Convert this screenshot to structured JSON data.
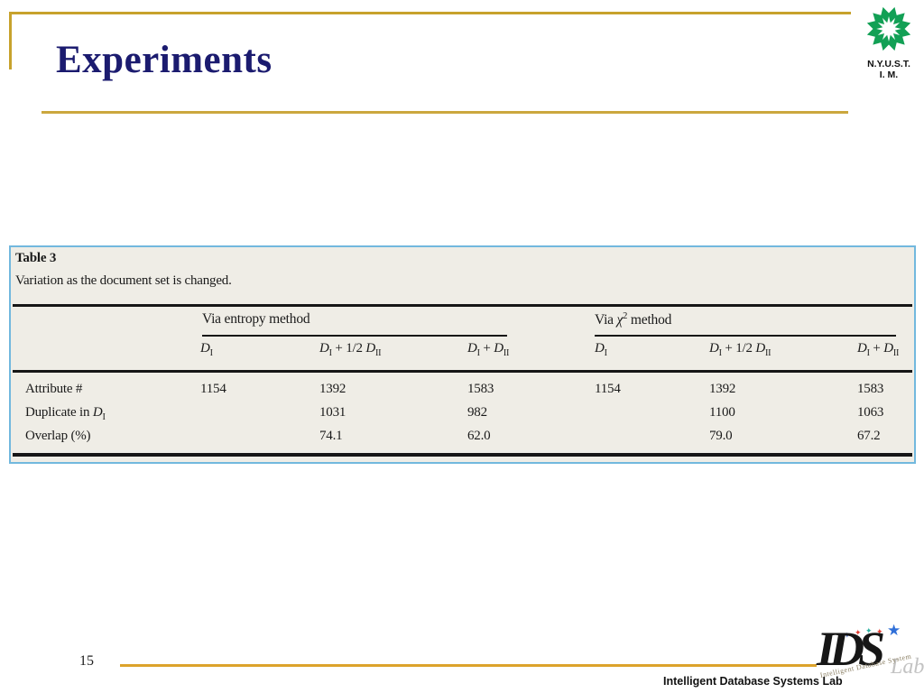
{
  "slide": {
    "title": "Experiments",
    "page_number": "15",
    "footer": "Intelligent Database Systems Lab"
  },
  "logos": {
    "nyust_line1": "N.Y.U.S.T.",
    "nyust_line2": "I. M.",
    "ids_letters": "IDS",
    "ids_watermark": "Intelligent Database System",
    "ids_lab": "Lab"
  },
  "table": {
    "caption_title": "Table 3",
    "caption_text": "Variation as the document set is changed.",
    "groups": [
      {
        "label_rich": "Via entropy method"
      },
      {
        "label_rich": "Via *χ*^{2} method"
      }
    ],
    "col_headers_rich": [
      "*D*_{I}",
      "*D*_{I} + 1/2 *D*_{II}",
      "*D*_{I} + *D*_{II}",
      "*D*_{I}",
      "*D*_{I} + 1/2 *D*_{II}",
      "*D*_{I} + *D*_{II}"
    ],
    "rows": [
      {
        "label_rich": "Attribute #",
        "values": [
          "1154",
          "1392",
          "1583",
          "1154",
          "1392",
          "1583"
        ]
      },
      {
        "label_rich": "Duplicate in *D*_{I}",
        "values": [
          "",
          "1031",
          "982",
          "",
          "1100",
          "1063"
        ]
      },
      {
        "label_rich": "Overlap (%)",
        "values": [
          "",
          "74.1",
          "62.0",
          "",
          "79.0",
          "67.2"
        ]
      }
    ]
  },
  "colors": {
    "accent_gold": "#C7A22C",
    "title_navy": "#1B1B6F",
    "table_border_blue": "#72B8DE",
    "table_background": "#EFEDE6",
    "nyust_green": "#12A055"
  }
}
